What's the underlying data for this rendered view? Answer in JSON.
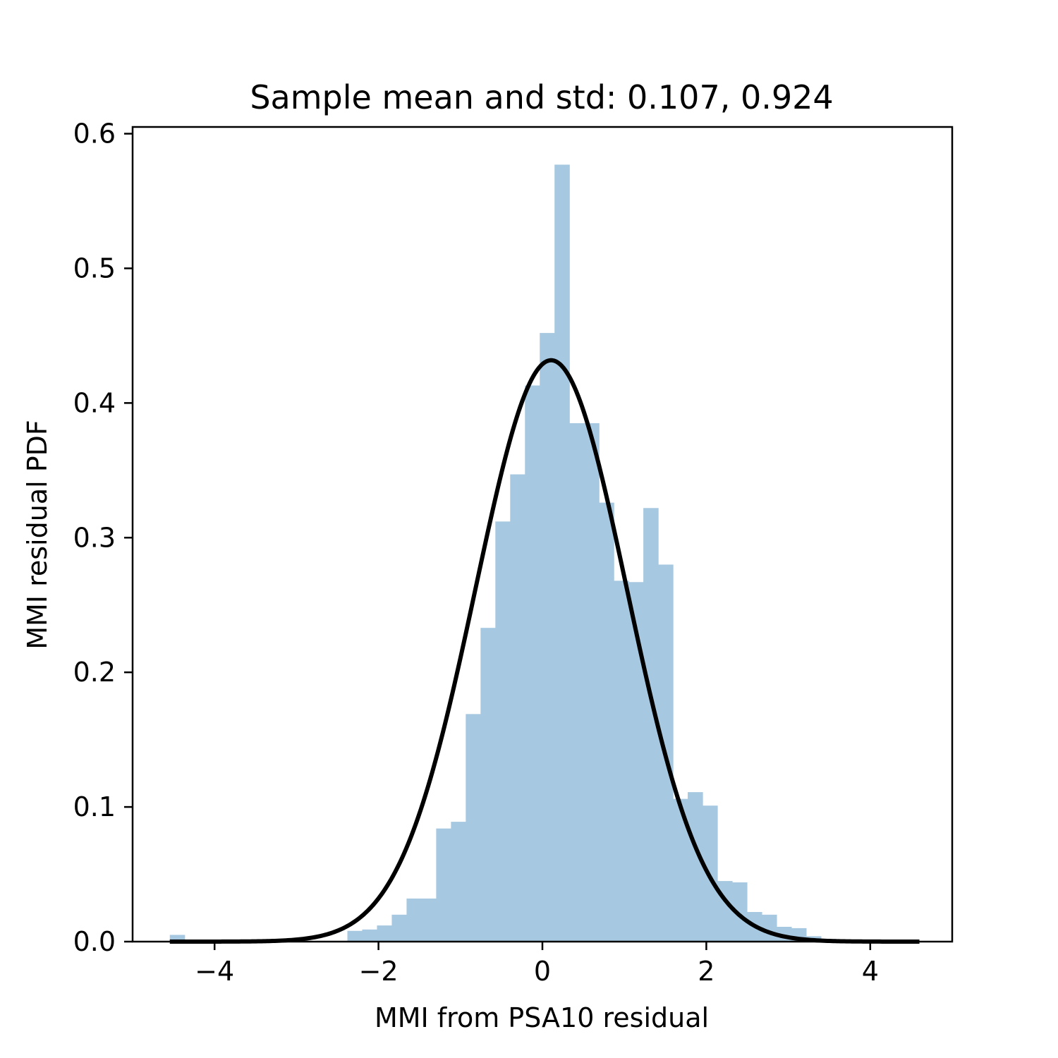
{
  "chart_data": {
    "type": "bar",
    "title": "Sample mean and std: 0.107, 0.924",
    "xlabel": "MMI from PSA10 residual",
    "ylabel": "MMI residual PDF",
    "xlim": [
      -5.0,
      5.0
    ],
    "ylim": [
      0.0,
      0.605
    ],
    "xticks": [
      -4,
      -2,
      0,
      2,
      4
    ],
    "xtick_labels": [
      "−4",
      "−2",
      "0",
      "2",
      "4"
    ],
    "yticks": [
      0.0,
      0.1,
      0.2,
      0.3,
      0.4,
      0.5,
      0.6
    ],
    "ytick_labels": [
      "0.0",
      "0.1",
      "0.2",
      "0.3",
      "0.4",
      "0.5",
      "0.6"
    ],
    "grid": false,
    "legend": "none",
    "histogram": {
      "bin_start": -4.546,
      "bin_width": 0.18055,
      "values": [
        0.005,
        0.0,
        0.0,
        0.0,
        0.0,
        0.0,
        0.0,
        0.0,
        0.0,
        0.0,
        0.0,
        0.0,
        0.008,
        0.009,
        0.012,
        0.02,
        0.032,
        0.032,
        0.084,
        0.089,
        0.169,
        0.233,
        0.312,
        0.347,
        0.413,
        0.452,
        0.577,
        0.385,
        0.385,
        0.326,
        0.268,
        0.267,
        0.322,
        0.28,
        0.106,
        0.111,
        0.101,
        0.045,
        0.044,
        0.022,
        0.02,
        0.011,
        0.01,
        0.004,
        0.002,
        0.001,
        0.0,
        0.0,
        0.0,
        0.0,
        0.0
      ],
      "color": "#a6c8e0"
    },
    "normal_curve": {
      "mean": 0.107,
      "std": 0.924,
      "x_range": [
        -4.546,
        4.6
      ],
      "color": "#000000"
    }
  }
}
